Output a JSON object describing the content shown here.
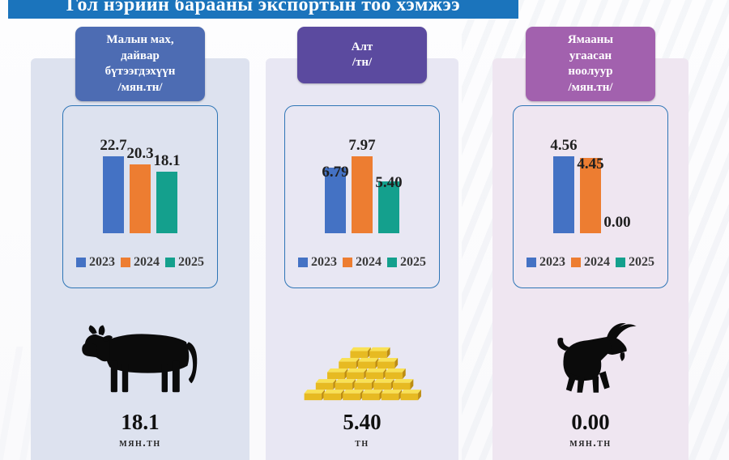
{
  "title": {
    "text": "Гол нэрийн барааны экспортын тоо хэмжээ"
  },
  "colors": {
    "title_bar": "#1b74bc",
    "series": [
      "#4472c4",
      "#ed7d31",
      "#14a08d"
    ],
    "card_headers": [
      "#4d6cb3",
      "#5b4a9f",
      "#a261ae"
    ],
    "card_backgrounds": [
      "#dde2ef",
      "#e8e7f3",
      "#efe6f1"
    ]
  },
  "cards": [
    {
      "header": "Малын мах,\nдайвар\nбүтээгдэхүүн\n/мян.тн/",
      "icon": "cow-icon",
      "big_value": "18.1",
      "unit": "мян.тн"
    },
    {
      "header": "Алт\n/тн/",
      "icon": "gold-bars-icon",
      "big_value": "5.40",
      "unit": "тн"
    },
    {
      "header": "Ямааны\nугаасан\nноолуур\n/мян.тн/",
      "icon": "goat-icon",
      "big_value": "0.00",
      "unit": "мян.тн"
    }
  ],
  "chart_data": [
    {
      "type": "bar",
      "title": "Малын мах, дайвар бүтээгдэхүүн /мян.тн/",
      "categories": [
        "2023",
        "2024",
        "2025"
      ],
      "values": [
        22.7,
        20.3,
        18.1
      ],
      "labels": [
        "22.7",
        "20.3",
        "18.1"
      ],
      "xlabel": "",
      "ylabel": "",
      "ylim": [
        0,
        22.7
      ],
      "legend_position": "bottom",
      "grid": false
    },
    {
      "type": "bar",
      "title": "Алт /тн/",
      "categories": [
        "2023",
        "2024",
        "2025"
      ],
      "values": [
        6.79,
        7.97,
        5.4
      ],
      "labels": [
        "6.79",
        "7.97",
        "5.40"
      ],
      "xlabel": "",
      "ylabel": "",
      "ylim": [
        0,
        7.97
      ],
      "legend_position": "bottom",
      "grid": false
    },
    {
      "type": "bar",
      "title": "Ямааны угаасан ноолуур /мян.тн/",
      "categories": [
        "2023",
        "2024",
        "2025"
      ],
      "values": [
        4.56,
        4.45,
        0.0
      ],
      "labels": [
        "4.56",
        "4.45",
        "0.00"
      ],
      "xlabel": "",
      "ylabel": "",
      "ylim": [
        0,
        4.56
      ],
      "legend_position": "bottom",
      "grid": false
    }
  ]
}
